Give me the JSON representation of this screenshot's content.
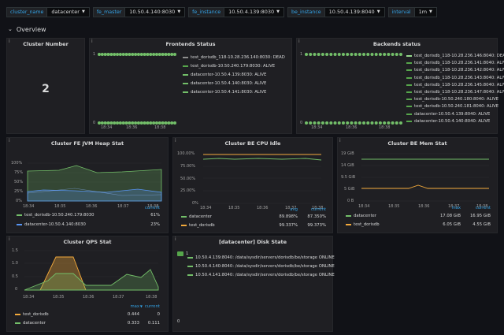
{
  "vars": [
    {
      "label": "cluster_name",
      "value": "datacenter"
    },
    {
      "label": "fe_master",
      "value": "10.50.4.140:8030"
    },
    {
      "label": "fe_instance",
      "value": "10.50.4.139:8030"
    },
    {
      "label": "be_instance",
      "value": "10.50.4.139:8040"
    },
    {
      "label": "interval",
      "value": "1m"
    }
  ],
  "row_title": "Overview",
  "cluster_number": {
    "title": "Cluster Number",
    "value": "2"
  },
  "frontends": {
    "title": "Frontends Status",
    "y_top": "1",
    "y_bottom": "0",
    "x_ticks": [
      "18:34",
      "18:36",
      "18:38"
    ],
    "legend": [
      {
        "label": "test_dorisdb_118-10.28.236.140:8030: DEAD",
        "color": "#8e8e8e"
      },
      {
        "label": "test_dorisdb-10.50.240.179:8030: ALIVE",
        "color": "#56a64b"
      },
      {
        "label": "datacenter-10.50.4.139:8030: ALIVE",
        "color": "#73bf69"
      },
      {
        "label": "datacenter-10.50.4.140:8030: ALIVE",
        "color": "#73bf69"
      },
      {
        "label": "datacenter-10.50.4.141:8030: ALIVE",
        "color": "#73bf69"
      }
    ]
  },
  "backends": {
    "title": "Backends status",
    "y_top": "1",
    "y_bottom": "0",
    "x_ticks": [
      "18:34",
      "18:36",
      "18:38"
    ],
    "legend": [
      {
        "label": "test_dorisdb_118-10.28.236.146:8040: DEAD",
        "color": "#96d98d"
      },
      {
        "label": "test_dorisdb_118-10.28.236.141:8040: ALIVE",
        "color": "#56a64b"
      },
      {
        "label": "test_dorisdb_118-10.28.236.142:8040: ALIVE",
        "color": "#56a64b"
      },
      {
        "label": "test_dorisdb_118-10.28.236.143:8040: ALIVE",
        "color": "#56a64b"
      },
      {
        "label": "test_dorisdb_118-10.28.236.145:8040: ALIVE",
        "color": "#56a64b"
      },
      {
        "label": "test_dorisdb_118-10.28.236.147:8040: ALIVE",
        "color": "#56a64b"
      },
      {
        "label": "test_dorisdb-10.50.240.180:8040: ALIVE",
        "color": "#56a64b"
      },
      {
        "label": "test_dorisdb-10.50.240.181:8040: ALIVE",
        "color": "#56a64b"
      },
      {
        "label": "datacenter-10.50.4.139:8040: ALIVE",
        "color": "#56a64b"
      },
      {
        "label": "datacenter-10.50.4.140:8040: ALIVE",
        "color": "#56a64b"
      }
    ]
  },
  "fe_heap": {
    "title": "Cluster FE JVM Heap Stat",
    "y_ticks": [
      "100%",
      "75%",
      "50%",
      "25%",
      "0%"
    ],
    "x_ticks": [
      "18:34",
      "18:35",
      "18:36",
      "18:37",
      "18:38"
    ],
    "header": "current",
    "legend": [
      {
        "label": "test_dorisdb-10.50.240.179:8030",
        "color": "#73bf69",
        "current": "61%"
      },
      {
        "label": "datacenter-10.50.4.140:8030",
        "color": "#5794f2",
        "current": "23%"
      }
    ]
  },
  "be_cpu": {
    "title": "Cluster BE CPU Idle",
    "y_ticks": [
      "100.00%",
      "75.00%",
      "50.00%",
      "25.00%",
      "0%"
    ],
    "x_ticks": [
      "18:34",
      "18:35",
      "18:36",
      "18:37",
      "18:38"
    ],
    "headers": [
      "avg",
      "current"
    ],
    "legend": [
      {
        "label": "datacenter",
        "color": "#73bf69",
        "avg": "89.898%",
        "current": "87.350%"
      },
      {
        "label": "test_dorisdb",
        "color": "#f2a93b",
        "avg": "99.337%",
        "current": "99.373%"
      }
    ]
  },
  "be_mem": {
    "title": "Cluster BE Mem Stat",
    "y_ticks": [
      "19 GiB",
      "14 GiB",
      "9.5 GiB",
      "5 GiB",
      "0 B"
    ],
    "x_ticks": [
      "18:34",
      "18:35",
      "18:36",
      "18:37",
      "18:38"
    ],
    "headers": [
      "max",
      "current"
    ],
    "legend": [
      {
        "label": "datacenter",
        "color": "#73bf69",
        "max": "17.08 GiB",
        "current": "16.95 GiB"
      },
      {
        "label": "test_dorisdb",
        "color": "#f2a93b",
        "max": "6.05 GiB",
        "current": "4.55 GiB"
      }
    ]
  },
  "qps": {
    "title": "Cluster QPS Stat",
    "y_ticks": [
      "1.5",
      "1.0",
      "0.5",
      "0"
    ],
    "x_ticks": [
      "18:34",
      "18:35",
      "18:36",
      "18:37",
      "18:38"
    ],
    "headers": [
      "max",
      "current"
    ],
    "legend": [
      {
        "label": "test_dorisdb",
        "color": "#f2a93b",
        "max": "0.444",
        "current": "0"
      },
      {
        "label": "datacenter",
        "color": "#73bf69",
        "max": "0.333",
        "current": "0.111"
      }
    ]
  },
  "disk": {
    "title": "[datacenter] Disk State",
    "top_value": "1",
    "bottom_value": "0",
    "rows": [
      "10.50.4.139:8040: /data/sysdir/servers/dorisdb/be/storage ONLINE",
      "10.50.4.140:8040: /data/sysdir/servers/dorisdb/be/storage ONLINE",
      "10.50.4.141:8040: /data/sysdir/servers/dorisdb/be/storage ONLINE"
    ]
  }
}
